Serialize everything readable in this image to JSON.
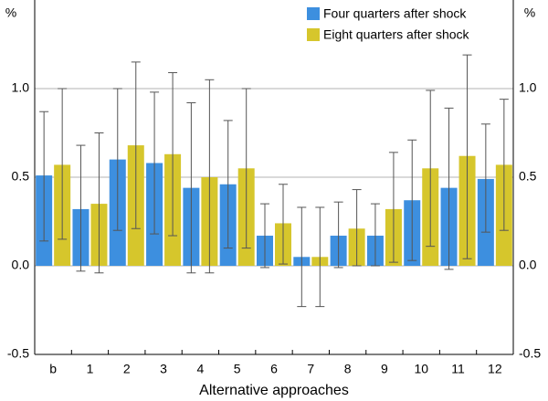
{
  "chart_data": {
    "type": "bar",
    "y_unit": "%",
    "xlabel": "Alternative approaches",
    "categories": [
      "b",
      "1",
      "2",
      "3",
      "4",
      "5",
      "6",
      "7",
      "8",
      "9",
      "10",
      "11",
      "12"
    ],
    "series": [
      {
        "name": "Four quarters after shock",
        "color": "#3d8fdf",
        "values": [
          0.51,
          0.32,
          0.6,
          0.58,
          0.44,
          0.46,
          0.17,
          0.05,
          0.17,
          0.17,
          0.37,
          0.44,
          0.49
        ],
        "lower": [
          0.14,
          -0.03,
          0.2,
          0.18,
          -0.04,
          0.1,
          -0.01,
          -0.23,
          -0.01,
          0.0,
          0.03,
          -0.02,
          0.19
        ],
        "upper": [
          0.87,
          0.68,
          1.0,
          0.98,
          0.92,
          0.82,
          0.35,
          0.33,
          0.36,
          0.35,
          0.71,
          0.89,
          0.8
        ]
      },
      {
        "name": "Eight quarters after shock",
        "color": "#d6c62c",
        "values": [
          0.57,
          0.35,
          0.68,
          0.63,
          0.5,
          0.55,
          0.24,
          0.05,
          0.21,
          0.32,
          0.55,
          0.62,
          0.57
        ],
        "lower": [
          0.15,
          -0.04,
          0.21,
          0.17,
          -0.04,
          0.1,
          0.01,
          -0.23,
          0.0,
          0.02,
          0.11,
          0.04,
          0.2
        ],
        "upper": [
          1.0,
          0.75,
          1.15,
          1.09,
          1.05,
          1.0,
          0.46,
          0.33,
          0.43,
          0.64,
          0.99,
          1.19,
          0.94
        ]
      }
    ],
    "ylim": [
      -0.5,
      1.5
    ],
    "yticks": [
      {
        "value": -0.5,
        "label": "-0.5"
      },
      {
        "value": 0,
        "label": "0.0"
      },
      {
        "value": 0.5,
        "label": "0.5"
      },
      {
        "value": 1,
        "label": "1.0"
      }
    ],
    "grid": true,
    "legend": "upper right"
  }
}
